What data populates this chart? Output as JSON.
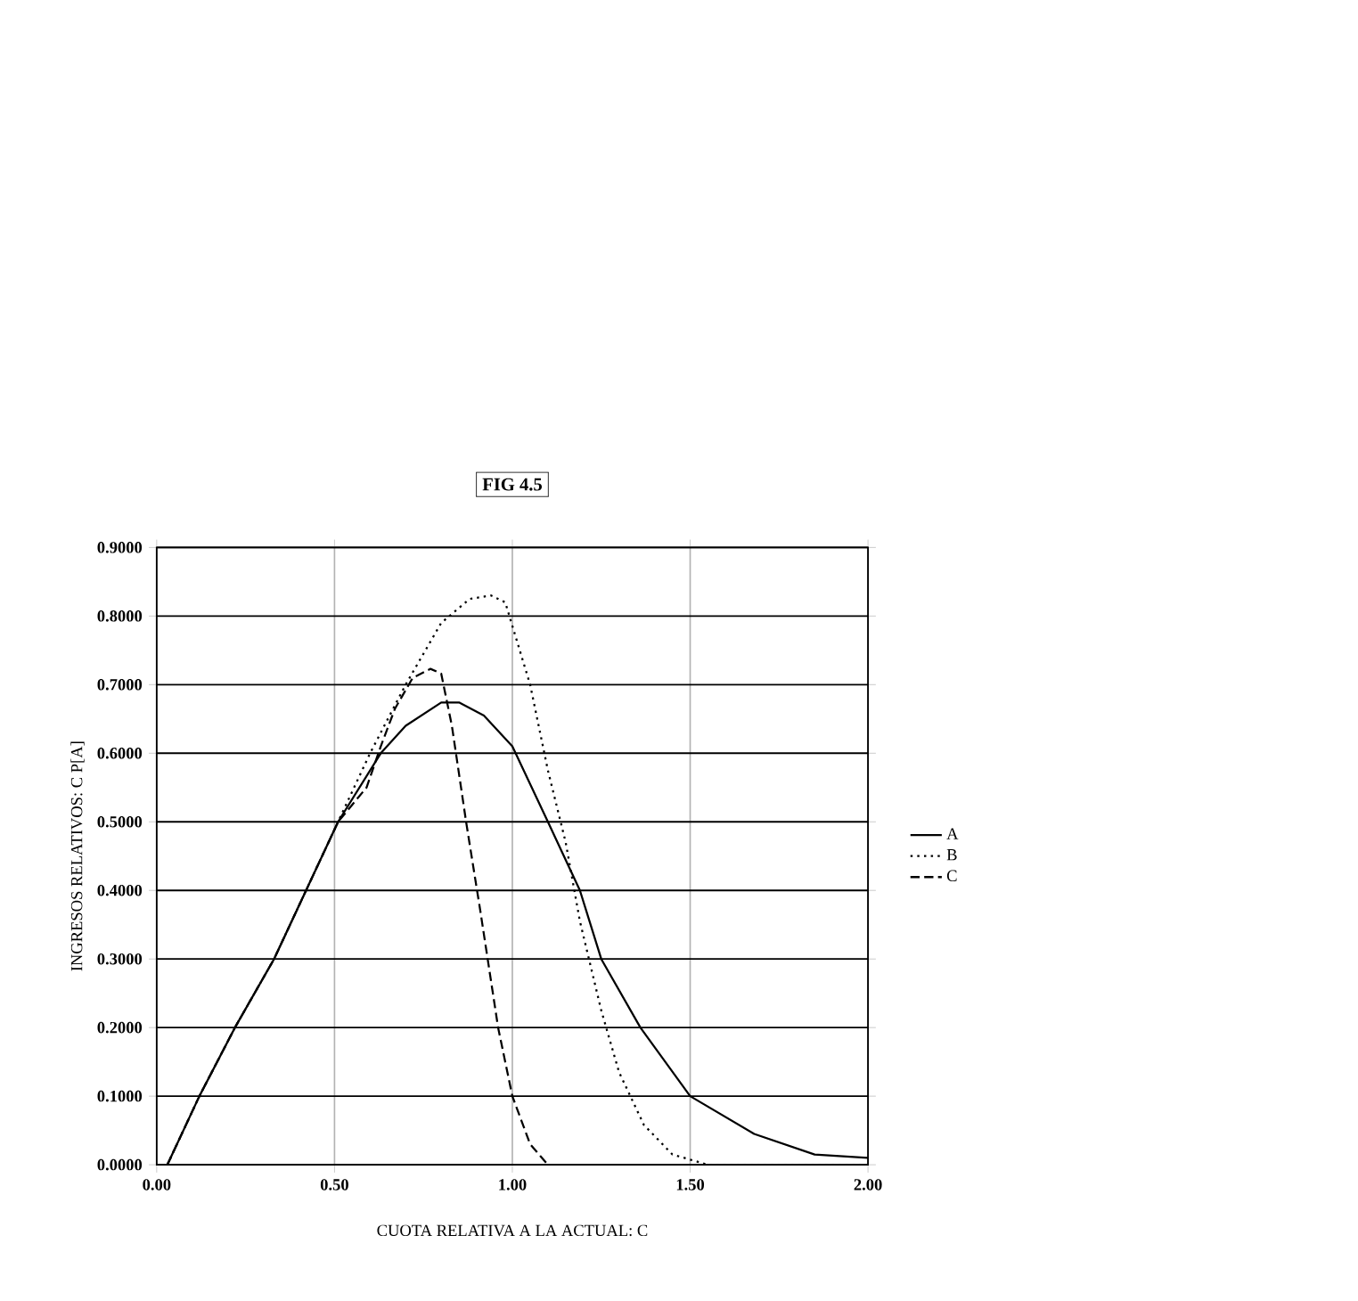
{
  "chart_data": {
    "type": "line",
    "title": "FIG 4.5",
    "xlabel": "CUOTA RELATIVA A LA ACTUAL: C",
    "ylabel": "INGRESOS RELATIVOS: C P[A]",
    "xlim": [
      0,
      2
    ],
    "ylim": [
      0,
      0.9
    ],
    "xticks": [
      {
        "value": 0,
        "label": "0.00"
      },
      {
        "value": 0.5,
        "label": "0.50"
      },
      {
        "value": 1,
        "label": "1.00"
      },
      {
        "value": 1.5,
        "label": "1.50"
      },
      {
        "value": 2,
        "label": "2.00"
      }
    ],
    "yticks": [
      {
        "value": 0,
        "label": "0.0000"
      },
      {
        "value": 0.1,
        "label": "0.1000"
      },
      {
        "value": 0.2,
        "label": "0.2000"
      },
      {
        "value": 0.3,
        "label": "0.3000"
      },
      {
        "value": 0.4,
        "label": "0.4000"
      },
      {
        "value": 0.5,
        "label": "0.5000"
      },
      {
        "value": 0.6,
        "label": "0.6000"
      },
      {
        "value": 0.7,
        "label": "0.7000"
      },
      {
        "value": 0.8,
        "label": "0.8000"
      },
      {
        "value": 0.9,
        "label": "0.9000"
      }
    ],
    "grid": true,
    "legend": "right",
    "marker": "none",
    "series": [
      {
        "name": "A",
        "color": "#000000",
        "line_style": "solid",
        "x": [
          0.03,
          0.12,
          0.22,
          0.33,
          0.42,
          0.51,
          0.63,
          0.7,
          0.8,
          0.85,
          0.92,
          1.0,
          1.1,
          1.19,
          1.25,
          1.36,
          1.5,
          1.68,
          1.85,
          2.0
        ],
        "values": [
          0,
          0.1,
          0.2,
          0.3,
          0.4,
          0.5,
          0.6,
          0.64,
          0.674,
          0.674,
          0.655,
          0.61,
          0.5,
          0.4,
          0.3,
          0.2,
          0.1,
          0.045,
          0.015,
          0.01
        ]
      },
      {
        "name": "B",
        "color": "#000000",
        "line_style": "dotted",
        "x": [
          0.03,
          0.12,
          0.22,
          0.33,
          0.42,
          0.51,
          0.6,
          0.7,
          0.8,
          0.88,
          0.94,
          0.98,
          1.05,
          1.1,
          1.15,
          1.19,
          1.25,
          1.3,
          1.37,
          1.45,
          1.55,
          2.0
        ],
        "values": [
          0,
          0.1,
          0.2,
          0.3,
          0.4,
          0.5,
          0.6,
          0.7,
          0.79,
          0.825,
          0.83,
          0.82,
          0.7,
          0.575,
          0.47,
          0.355,
          0.225,
          0.135,
          0.058,
          0.015,
          0,
          0
        ]
      },
      {
        "name": "C",
        "color": "#000000",
        "line_style": "dashed",
        "x": [
          0.03,
          0.12,
          0.22,
          0.33,
          0.42,
          0.51,
          0.59,
          0.63,
          0.67,
          0.72,
          0.77,
          0.8,
          0.83,
          0.87,
          0.91,
          0.96,
          1.0,
          1.05,
          1.1
        ],
        "values": [
          0,
          0.1,
          0.2,
          0.3,
          0.4,
          0.5,
          0.55,
          0.61,
          0.665,
          0.71,
          0.723,
          0.716,
          0.64,
          0.5,
          0.37,
          0.2,
          0.1,
          0.03,
          0
        ]
      }
    ]
  }
}
